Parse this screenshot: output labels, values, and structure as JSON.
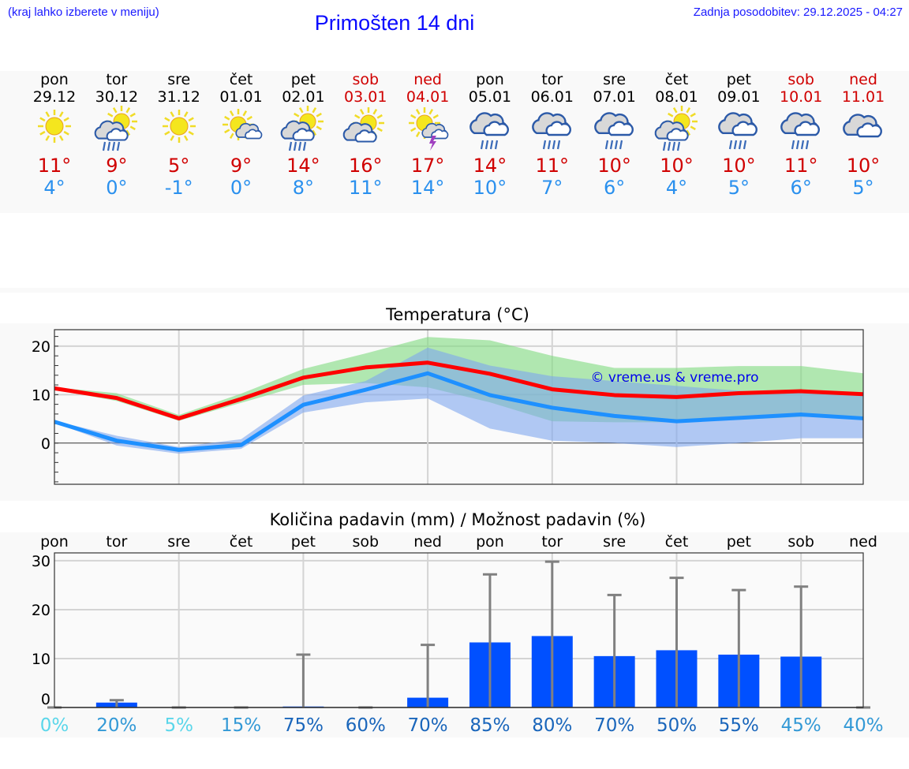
{
  "header": {
    "hint": "(kraj lahko izberete v meniju)",
    "title": "Primošten 14 dni",
    "updated": "Zadnja posodobitev: 29.12.2025 - 04:27"
  },
  "colors": {
    "max": "#ff0000",
    "min": "#1e90ff",
    "max_band": "#7fdb7f",
    "min_band": "#7fa6ee",
    "bar": "#0050ff",
    "err": "#808080",
    "weekend": "#d00000"
  },
  "days": [
    {
      "name": "pon",
      "date": "29.12",
      "icon": "sun",
      "max": "11°",
      "min": "4°",
      "weekend": false
    },
    {
      "name": "tor",
      "date": "30.12",
      "icon": "sun-cloud-rain",
      "max": "9°",
      "min": "0°",
      "weekend": false
    },
    {
      "name": "sre",
      "date": "31.12",
      "icon": "sun",
      "max": "5°",
      "min": "-1°",
      "weekend": false
    },
    {
      "name": "čet",
      "date": "01.01",
      "icon": "sun-small-cloud",
      "max": "9°",
      "min": "0°",
      "weekend": false
    },
    {
      "name": "pet",
      "date": "02.01",
      "icon": "sun-cloud-rain",
      "max": "14°",
      "min": "8°",
      "weekend": false
    },
    {
      "name": "sob",
      "date": "03.01",
      "icon": "sun-cloud",
      "max": "16°",
      "min": "11°",
      "weekend": true
    },
    {
      "name": "ned",
      "date": "04.01",
      "icon": "sun-thunder",
      "max": "17°",
      "min": "14°",
      "weekend": true
    },
    {
      "name": "pon",
      "date": "05.01",
      "icon": "cloud-rain",
      "max": "14°",
      "min": "10°",
      "weekend": false
    },
    {
      "name": "tor",
      "date": "06.01",
      "icon": "cloud-rain",
      "max": "11°",
      "min": "7°",
      "weekend": false
    },
    {
      "name": "sre",
      "date": "07.01",
      "icon": "cloud-rain",
      "max": "10°",
      "min": "6°",
      "weekend": false
    },
    {
      "name": "čet",
      "date": "08.01",
      "icon": "sun-cloud-rain",
      "max": "10°",
      "min": "4°",
      "weekend": false
    },
    {
      "name": "pet",
      "date": "09.01",
      "icon": "cloud-rain",
      "max": "10°",
      "min": "5°",
      "weekend": false
    },
    {
      "name": "sob",
      "date": "10.01",
      "icon": "cloud-rain",
      "max": "11°",
      "min": "6°",
      "weekend": true
    },
    {
      "name": "ned",
      "date": "11.01",
      "icon": "cloud",
      "max": "10°",
      "min": "5°",
      "weekend": true
    }
  ],
  "chart_data": [
    {
      "type": "line",
      "title": "Temperatura (°C)",
      "watermark": "© vreme.us & vreme.pro",
      "ylim": [
        -8.5,
        23.4
      ],
      "yticks": [
        0,
        10,
        20
      ],
      "grid": true,
      "series": [
        {
          "name": "max",
          "values": [
            11.3,
            9.3,
            5.1,
            9.1,
            13.5,
            15.6,
            16.6,
            14.3,
            11.1,
            9.9,
            9.5,
            10.3,
            10.7,
            10.1
          ]
        },
        {
          "name": "min",
          "values": [
            4.4,
            0.5,
            -1.4,
            -0.4,
            7.9,
            11.0,
            14.4,
            9.9,
            7.3,
            5.6,
            4.5,
            5.2,
            5.9,
            5.1
          ]
        }
      ],
      "bands": [
        {
          "name": "max_range",
          "upper": [
            11.5,
            10.3,
            5.8,
            10.2,
            15.3,
            18.5,
            21.9,
            21.2,
            18.0,
            15.5,
            15.5,
            15.9,
            15.9,
            14.4
          ],
          "lower": [
            11.0,
            8.7,
            4.6,
            8.3,
            12.0,
            12.4,
            11.5,
            8.4,
            4.5,
            4.3,
            4.3,
            4.8,
            5.4,
            5.5
          ]
        },
        {
          "name": "min_range",
          "upper": [
            4.6,
            1.5,
            -0.8,
            0.8,
            9.8,
            12.8,
            19.7,
            16.0,
            13.8,
            12.8,
            11.8,
            10.8,
            10.4,
            9.9
          ],
          "lower": [
            4.2,
            -0.5,
            -2.2,
            -1.2,
            6.3,
            8.4,
            9.2,
            3.0,
            0.5,
            0.0,
            -0.8,
            0.0,
            1.0,
            1.0
          ]
        }
      ]
    },
    {
      "type": "bar",
      "title": "Količina padavin (mm) / Možnost padavin (%)",
      "ylim": [
        0,
        31.6
      ],
      "yticks": [
        0,
        10,
        20,
        30
      ],
      "grid": true,
      "categories": [
        "pon",
        "tor",
        "sre",
        "čet",
        "pet",
        "sob",
        "ned",
        "pon",
        "tor",
        "sre",
        "čet",
        "pet",
        "sob",
        "ned"
      ],
      "values": [
        0,
        1.0,
        0,
        0,
        0.2,
        0,
        2.0,
        13.3,
        14.6,
        10.5,
        11.7,
        10.8,
        10.4,
        0
      ],
      "error_max": [
        0,
        1.5,
        0,
        0,
        10.8,
        0,
        12.8,
        27.2,
        29.8,
        23.0,
        26.5,
        24.0,
        24.7,
        0
      ],
      "probability": [
        "0%",
        "20%",
        "5%",
        "15%",
        "75%",
        "60%",
        "70%",
        "85%",
        "80%",
        "70%",
        "50%",
        "55%",
        "45%",
        "40%"
      ],
      "probability_colors": [
        "#5ad6ea",
        "#3399d6",
        "#5ad6ea",
        "#3399d6",
        "#1a66bb",
        "#1a66bb",
        "#1a66bb",
        "#1a66bb",
        "#1a66bb",
        "#1a66bb",
        "#1a66bb",
        "#1a66bb",
        "#3399d6",
        "#3399d6"
      ]
    }
  ]
}
